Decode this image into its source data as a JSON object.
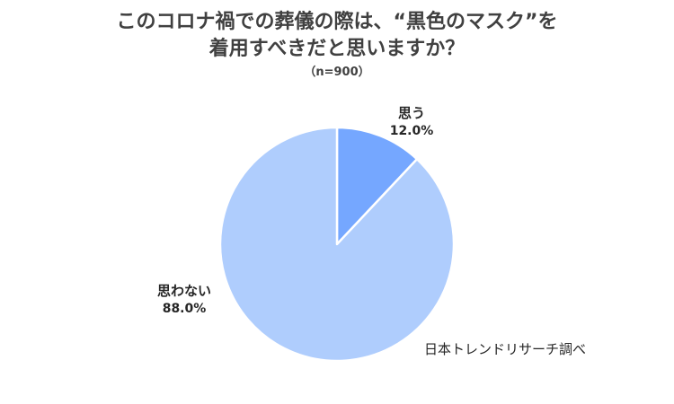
{
  "chart_data": {
    "type": "pie",
    "title_lines": [
      "このコロナ禍での葬儀の際は、“黒色のマスク”を",
      "着用すべきだと思いますか？"
    ],
    "subtitle": "（n=900）",
    "slices": [
      {
        "label": "思う",
        "value": 12.0,
        "value_label": "12.0%",
        "color": "#75a7ff"
      },
      {
        "label": "思わない",
        "value": 88.0,
        "value_label": "88.0%",
        "color": "#afcdfd"
      }
    ],
    "start_angle_deg": 0,
    "direction": "clockwise",
    "slice_border_color": "#ffffff",
    "source": "日本トレンドリサーチ調べ"
  }
}
